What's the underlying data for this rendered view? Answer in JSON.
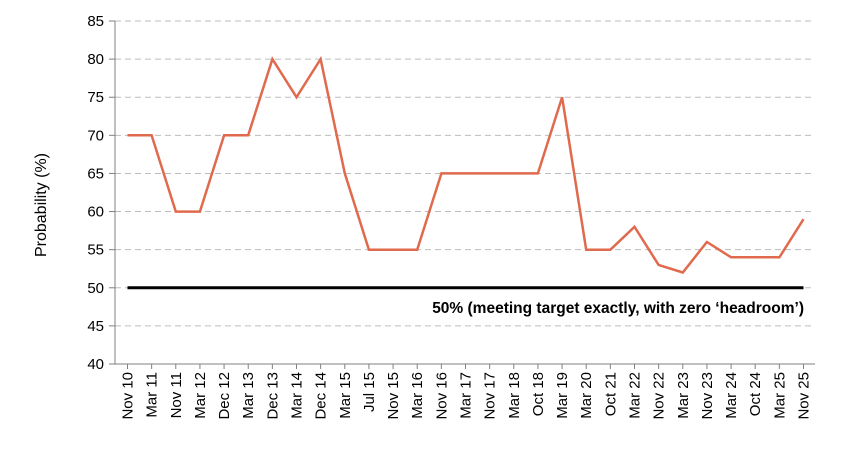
{
  "chart_data": {
    "type": "line",
    "ylabel": "Probability (%)",
    "ylim": [
      40,
      85
    ],
    "ytick_step": 5,
    "grid": true,
    "categories": [
      "Nov 10",
      "Mar 11",
      "Nov 11",
      "Mar 12",
      "Dec 12",
      "Mar 13",
      "Dec 13",
      "Mar 14",
      "Dec 14",
      "Mar 15",
      "Jul 15",
      "Nov 15",
      "Mar 16",
      "Nov 16",
      "Mar 17",
      "Nov 17",
      "Mar 18",
      "Oct 18",
      "Mar 19",
      "Mar 20",
      "Oct 21",
      "Mar 22",
      "Nov 22",
      "Mar 23",
      "Nov 23",
      "Mar 24",
      "Oct 24",
      "Mar 25",
      "Nov 25"
    ],
    "series": [
      {
        "color": "#E06A4E",
        "values": [
          70,
          70,
          60,
          60,
          70,
          70,
          80,
          75,
          80,
          65,
          55,
          55,
          55,
          65,
          65,
          65,
          65,
          65,
          75,
          55,
          55,
          58,
          53,
          52,
          56,
          54,
          54,
          54,
          59
        ]
      }
    ],
    "reference_line": {
      "value": 50,
      "color": "#000000",
      "label": "50% (meeting target exactly, with zero ‘headroom’)"
    }
  }
}
